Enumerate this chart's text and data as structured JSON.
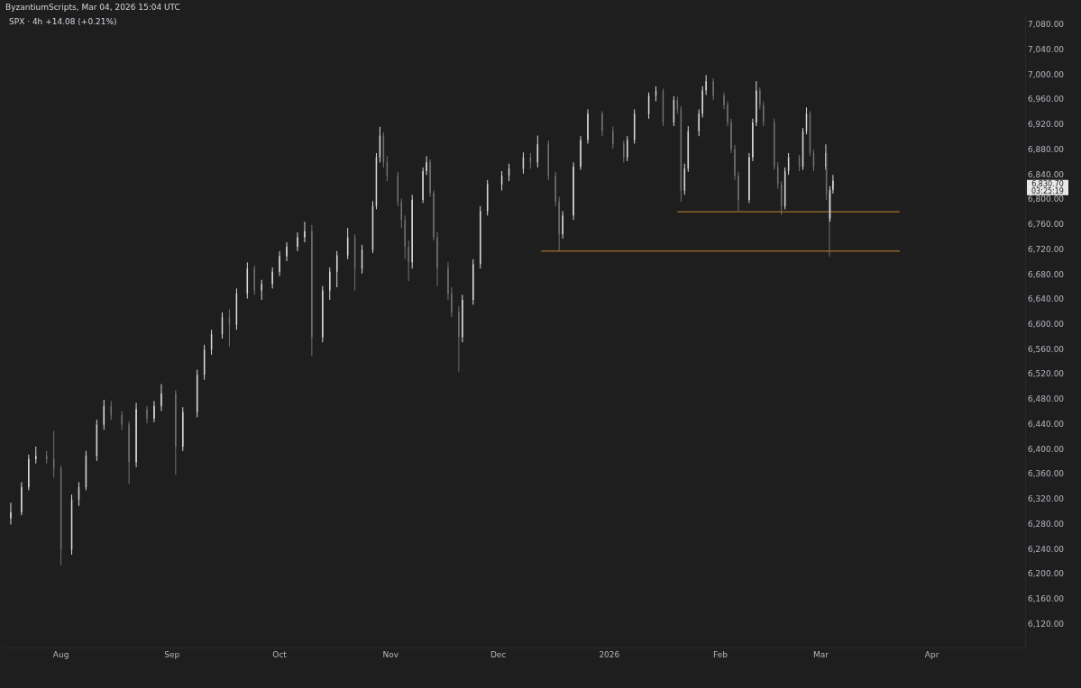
{
  "chart_data": {
    "type": "candlestick",
    "title": "SPX · 4h  +14.08 (+0.21%)",
    "annotations": [
      "ByzantiumScripts, Mar 04, 2026 15:04 UTC",
      "6,830.70",
      "03:25:19"
    ],
    "xlim": [
      "2025-07-16",
      "2026-04-27"
    ],
    "xticks": [
      {
        "value": "2025-08-01",
        "label": "Aug"
      },
      {
        "value": "2025-09-01",
        "label": "Sep"
      },
      {
        "value": "2025-10-01",
        "label": "Oct"
      },
      {
        "value": "2025-11-01",
        "label": "Nov"
      },
      {
        "value": "2025-12-01",
        "label": "Dec"
      },
      {
        "value": "2026-01-01",
        "label": "2026"
      },
      {
        "value": "2026-02-01",
        "label": "Feb"
      },
      {
        "value": "2026-03-01",
        "label": "Mar"
      },
      {
        "value": "2026-04-01",
        "label": "Apr"
      }
    ],
    "ylim": [
      6083,
      7097
    ],
    "yticks": [
      {
        "value": 6120,
        "label": "6,120.00"
      },
      {
        "value": 6160,
        "label": "6,160.00"
      },
      {
        "value": 6200,
        "label": "6,200.00"
      },
      {
        "value": 6240,
        "label": "6,240.00"
      },
      {
        "value": 6280,
        "label": "6,280.00"
      },
      {
        "value": 6320,
        "label": "6,320.00"
      },
      {
        "value": 6360,
        "label": "6,360.00"
      },
      {
        "value": 6400,
        "label": "6,400.00"
      },
      {
        "value": 6440,
        "label": "6,440.00"
      },
      {
        "value": 6480,
        "label": "6,480.00"
      },
      {
        "value": 6520,
        "label": "6,520.00"
      },
      {
        "value": 6560,
        "label": "6,560.00"
      },
      {
        "value": 6600,
        "label": "6,600.00"
      },
      {
        "value": 6640,
        "label": "6,640.00"
      },
      {
        "value": 6680,
        "label": "6,680.00"
      },
      {
        "value": 6720,
        "label": "6,720.00"
      },
      {
        "value": 6760,
        "label": "6,760.00"
      },
      {
        "value": 6800,
        "label": "6,800.00"
      },
      {
        "value": 6840,
        "label": "6,840.00"
      },
      {
        "value": 6880,
        "label": "6,880.00"
      },
      {
        "value": 6920,
        "label": "6,920.00"
      },
      {
        "value": 6960,
        "label": "6,960.00"
      },
      {
        "value": 7000,
        "label": "7,000.00"
      },
      {
        "value": 7040,
        "label": "7,040.00"
      },
      {
        "value": 7080,
        "label": "7,080.00"
      }
    ],
    "series": [
      {
        "colors": [
          "#d9d9d9",
          "#d9d9d9",
          "#d9d9d9",
          "#d9d9d9",
          "#707070",
          "#707070",
          "#707070",
          "#d9d9d9",
          "#d9d9d9",
          "#d9d9d9",
          "#d9d9d9",
          "#d9d9d9",
          "#707070",
          "#707070",
          "#707070",
          "#d9d9d9",
          "#707070",
          "#d9d9d9",
          "#d9d9d9",
          "#707070",
          "#d9d9d9",
          "#d9d9d9",
          "#d9d9d9",
          "#d9d9d9",
          "#d9d9d9",
          "#707070",
          "#d9d9d9",
          "#d9d9d9",
          "#707070",
          "#d9d9d9",
          "#d9d9d9",
          "#d9d9d9",
          "#d9d9d9",
          "#d9d9d9",
          "#d9d9d9",
          "#707070",
          "#d9d9d9",
          "#d9d9d9",
          "#d9d9d9",
          "#d9d9d9",
          "#707070",
          "#d9d9d9",
          "#d9d9d9",
          "#d9d9d9",
          "#d9d9d9",
          "#707070",
          "#707070",
          "#707070",
          "#707070",
          "#707070",
          "#707070",
          "#d9d9d9",
          "#d9d9d9",
          "#d9d9d9",
          "#707070",
          "#707070",
          "#707070",
          "#707070",
          "#707070",
          "#707070",
          "#d9d9d9",
          "#d9d9d9",
          "#d9d9d9",
          "#d9d9d9",
          "#d9d9d9",
          "#d9d9d9",
          "#d9d9d9",
          "#707070",
          "#d9d9d9",
          "#707070",
          "#707070",
          "#707070",
          "#d9d9d9",
          "#d9d9d9",
          "#d9d9d9",
          "#d9d9d9",
          "#707070",
          "#707070",
          "#707070",
          "#d9d9d9",
          "#d9d9d9",
          "#d9d9d9",
          "#d9d9d9",
          "#707070",
          "#d9d9d9",
          "#707070",
          "#707070",
          "#d9d9d9",
          "#d9d9d9",
          "#d9d9d9",
          "#d9d9d9",
          "#d9d9d9",
          "#707070",
          "#707070",
          "#707070",
          "#707070",
          "#707070",
          "#707070",
          "#d9d9d9",
          "#d9d9d9",
          "#d9d9d9",
          "#707070",
          "#707070",
          "#707070",
          "#707070",
          "#707070",
          "#d9d9d9",
          "#d9d9d9",
          "#707070",
          "#d9d9d9",
          "#d9d9d9",
          "#707070",
          "#707070",
          "#d9d9d9",
          "#707070",
          "#707070",
          "#d9d9d9",
          "#d9d9d9"
        ],
        "x": [
          "2025-07-18",
          "2025-07-21",
          "2025-07-23",
          "2025-07-25",
          "2025-07-28",
          "2025-07-30",
          "2025-08-01",
          "2025-08-04",
          "2025-08-06",
          "2025-08-08",
          "2025-08-11",
          "2025-08-13",
          "2025-08-15",
          "2025-08-18",
          "2025-08-20",
          "2025-08-22",
          "2025-08-25",
          "2025-08-27",
          "2025-08-29",
          "2025-09-02",
          "2025-09-04",
          "2025-09-08",
          "2025-09-10",
          "2025-09-12",
          "2025-09-15",
          "2025-09-17",
          "2025-09-19",
          "2025-09-22",
          "2025-09-24",
          "2025-09-26",
          "2025-09-29",
          "2025-10-01",
          "2025-10-03",
          "2025-10-06",
          "2025-10-08",
          "2025-10-10",
          "2025-10-13",
          "2025-10-15",
          "2025-10-17",
          "2025-10-20",
          "2025-10-22",
          "2025-10-24",
          "2025-10-27",
          "2025-10-28",
          "2025-10-29",
          "2025-10-30",
          "2025-10-31",
          "2025-11-03",
          "2025-11-04",
          "2025-11-05",
          "2025-11-06",
          "2025-11-07",
          "2025-11-10",
          "2025-11-11",
          "2025-11-12",
          "2025-11-13",
          "2025-11-14",
          "2025-11-17",
          "2025-11-18",
          "2025-11-20",
          "2025-11-21",
          "2025-11-24",
          "2025-11-26",
          "2025-11-28",
          "2025-12-02",
          "2025-12-04",
          "2025-12-08",
          "2025-12-10",
          "2025-12-12",
          "2025-12-15",
          "2025-12-17",
          "2025-12-18",
          "2025-12-19",
          "2025-12-22",
          "2025-12-24",
          "2025-12-26",
          "2025-12-30",
          "2026-01-02",
          "2026-01-05",
          "2026-01-06",
          "2026-01-08",
          "2026-01-12",
          "2026-01-14",
          "2026-01-16",
          "2026-01-19",
          "2026-01-20",
          "2026-01-21",
          "2026-01-22",
          "2026-01-23",
          "2026-01-26",
          "2026-01-27",
          "2026-01-28",
          "2026-01-30",
          "2026-02-02",
          "2026-02-03",
          "2026-02-04",
          "2026-02-05",
          "2026-02-06",
          "2026-02-09",
          "2026-02-10",
          "2026-02-11",
          "2026-02-12",
          "2026-02-13",
          "2026-02-16",
          "2026-02-17",
          "2026-02-18",
          "2026-02-19",
          "2026-02-20",
          "2026-02-23",
          "2026-02-24",
          "2026-02-25",
          "2026-02-26",
          "2026-02-27",
          "2026-03-02T09:30",
          "2026-03-02T13:30",
          "2026-03-03T09:30",
          "2026-03-03T13:30",
          "2026-03-04T09:30"
        ],
        "ohlc": [
          [
            6290,
            6315,
            6280,
            6300
          ],
          [
            6300,
            6348,
            6295,
            6340
          ],
          [
            6340,
            6392,
            6335,
            6385
          ],
          [
            6385,
            6405,
            6378,
            6390
          ],
          [
            6390,
            6398,
            6378,
            6385
          ],
          [
            6385,
            6430,
            6355,
            6370
          ],
          [
            6370,
            6375,
            6215,
            6240
          ],
          [
            6240,
            6328,
            6232,
            6320
          ],
          [
            6320,
            6348,
            6310,
            6340
          ],
          [
            6340,
            6398,
            6335,
            6390
          ],
          [
            6390,
            6448,
            6382,
            6440
          ],
          [
            6440,
            6480,
            6432,
            6470
          ],
          [
            6470,
            6478,
            6448,
            6455
          ],
          [
            6455,
            6462,
            6432,
            6440
          ],
          [
            6440,
            6445,
            6345,
            6380
          ],
          [
            6380,
            6475,
            6372,
            6465
          ],
          [
            6465,
            6470,
            6442,
            6450
          ],
          [
            6450,
            6478,
            6444,
            6470
          ],
          [
            6470,
            6505,
            6462,
            6490
          ],
          [
            6490,
            6495,
            6360,
            6405
          ],
          [
            6405,
            6468,
            6398,
            6460
          ],
          [
            6460,
            6528,
            6452,
            6520
          ],
          [
            6520,
            6568,
            6512,
            6560
          ],
          [
            6560,
            6592,
            6552,
            6585
          ],
          [
            6585,
            6620,
            6578,
            6612
          ],
          [
            6612,
            6625,
            6565,
            6600
          ],
          [
            6600,
            6658,
            6592,
            6650
          ],
          [
            6650,
            6700,
            6642,
            6690
          ],
          [
            6690,
            6695,
            6648,
            6655
          ],
          [
            6655,
            6672,
            6640,
            6665
          ],
          [
            6665,
            6692,
            6658,
            6685
          ],
          [
            6685,
            6718,
            6678,
            6710
          ],
          [
            6710,
            6732,
            6702,
            6725
          ],
          [
            6725,
            6748,
            6718,
            6740
          ],
          [
            6740,
            6765,
            6732,
            6750
          ],
          [
            6750,
            6760,
            6550,
            6580
          ],
          [
            6580,
            6662,
            6572,
            6655
          ],
          [
            6655,
            6692,
            6640,
            6685
          ],
          [
            6685,
            6718,
            6660,
            6711
          ],
          [
            6711,
            6755,
            6705,
            6740
          ],
          [
            6740,
            6745,
            6655,
            6690
          ],
          [
            6690,
            6728,
            6682,
            6720
          ],
          [
            6720,
            6798,
            6715,
            6790
          ],
          [
            6790,
            6875,
            6785,
            6868
          ],
          [
            6868,
            6917,
            6860,
            6903
          ],
          [
            6903,
            6908,
            6852,
            6860
          ],
          [
            6860,
            6870,
            6830,
            6839
          ],
          [
            6839,
            6845,
            6790,
            6797
          ],
          [
            6797,
            6802,
            6755,
            6768
          ],
          [
            6768,
            6775,
            6705,
            6725
          ],
          [
            6725,
            6735,
            6670,
            6700
          ],
          [
            6700,
            6808,
            6690,
            6800
          ],
          [
            6800,
            6852,
            6795,
            6846
          ],
          [
            6846,
            6870,
            6840,
            6860
          ],
          [
            6860,
            6865,
            6805,
            6811
          ],
          [
            6811,
            6815,
            6735,
            6740
          ],
          [
            6740,
            6748,
            6662,
            6690
          ],
          [
            6690,
            6700,
            6640,
            6650
          ],
          [
            6650,
            6660,
            6612,
            6620
          ],
          [
            6620,
            6630,
            6525,
            6580
          ],
          [
            6580,
            6648,
            6572,
            6640
          ],
          [
            6640,
            6705,
            6632,
            6697
          ],
          [
            6697,
            6790,
            6690,
            6782
          ],
          [
            6782,
            6832,
            6775,
            6825
          ],
          [
            6825,
            6846,
            6815,
            6839
          ],
          [
            6839,
            6858,
            6830,
            6850
          ],
          [
            6850,
            6876,
            6842,
            6868
          ],
          [
            6868,
            6875,
            6850,
            6860
          ],
          [
            6860,
            6903,
            6852,
            6889
          ],
          [
            6889,
            6895,
            6832,
            6839
          ],
          [
            6839,
            6845,
            6790,
            6797
          ],
          [
            6797,
            6805,
            6719,
            6745
          ],
          [
            6745,
            6782,
            6738,
            6775
          ],
          [
            6775,
            6860,
            6768,
            6853
          ],
          [
            6853,
            6902,
            6848,
            6896
          ],
          [
            6896,
            6945,
            6890,
            6938
          ],
          [
            6938,
            6942,
            6902,
            6910
          ],
          [
            6910,
            6918,
            6882,
            6890
          ],
          [
            6890,
            6895,
            6860,
            6868
          ],
          [
            6868,
            6902,
            6862,
            6896
          ],
          [
            6896,
            6945,
            6890,
            6938
          ],
          [
            6938,
            6972,
            6930,
            6967
          ],
          [
            6967,
            6982,
            6958,
            6974
          ],
          [
            6974,
            6978,
            6918,
            6924
          ],
          [
            6924,
            6966,
            6918,
            6960
          ],
          [
            6960,
            6965,
            6938,
            6945
          ],
          [
            6945,
            6950,
            6797,
            6815
          ],
          [
            6815,
            6858,
            6808,
            6850
          ],
          [
            6850,
            6918,
            6845,
            6910
          ],
          [
            6910,
            6945,
            6902,
            6938
          ],
          [
            6938,
            6982,
            6932,
            6975
          ],
          [
            6975,
            7000,
            6968,
            6990
          ],
          [
            6990,
            6995,
            6960,
            6967
          ],
          [
            6967,
            6972,
            6945,
            6952
          ],
          [
            6952,
            6958,
            6918,
            6924
          ],
          [
            6924,
            6930,
            6875,
            6881
          ],
          [
            6881,
            6888,
            6832,
            6839
          ],
          [
            6839,
            6845,
            6782,
            6800
          ],
          [
            6800,
            6875,
            6795,
            6868
          ],
          [
            6868,
            6930,
            6862,
            6924
          ],
          [
            6924,
            6990,
            6918,
            6975
          ],
          [
            6975,
            6980,
            6945,
            6952
          ],
          [
            6952,
            6958,
            6918,
            6924
          ],
          [
            6924,
            6930,
            6848,
            6853
          ],
          [
            6853,
            6860,
            6818,
            6825
          ],
          [
            6825,
            6830,
            6776,
            6790
          ],
          [
            6790,
            6852,
            6785,
            6846
          ],
          [
            6846,
            6875,
            6840,
            6868
          ],
          [
            6868,
            6872,
            6846,
            6853
          ],
          [
            6853,
            6915,
            6848,
            6910
          ],
          [
            6910,
            6948,
            6905,
            6938
          ],
          [
            6938,
            6942,
            6870,
            6875
          ],
          [
            6875,
            6880,
            6846,
            6853
          ],
          [
            6853,
            6889,
            6848,
            6875
          ],
          [
            6875,
            6880,
            6800,
            6810
          ],
          [
            6810,
            6815,
            6709,
            6770
          ],
          [
            6770,
            6822,
            6765,
            6816
          ],
          [
            6816,
            6840,
            6810,
            6830.7
          ]
        ]
      },
      {
        "type": "line",
        "color": "#c8862f",
        "x": [
          "2026-01-20",
          "2026-03-23"
        ],
        "values": [
          6781,
          6781
        ]
      },
      {
        "type": "line",
        "color": "#c8862f",
        "x": [
          "2025-12-13",
          "2026-03-23"
        ],
        "values": [
          6718,
          6718
        ]
      }
    ]
  }
}
